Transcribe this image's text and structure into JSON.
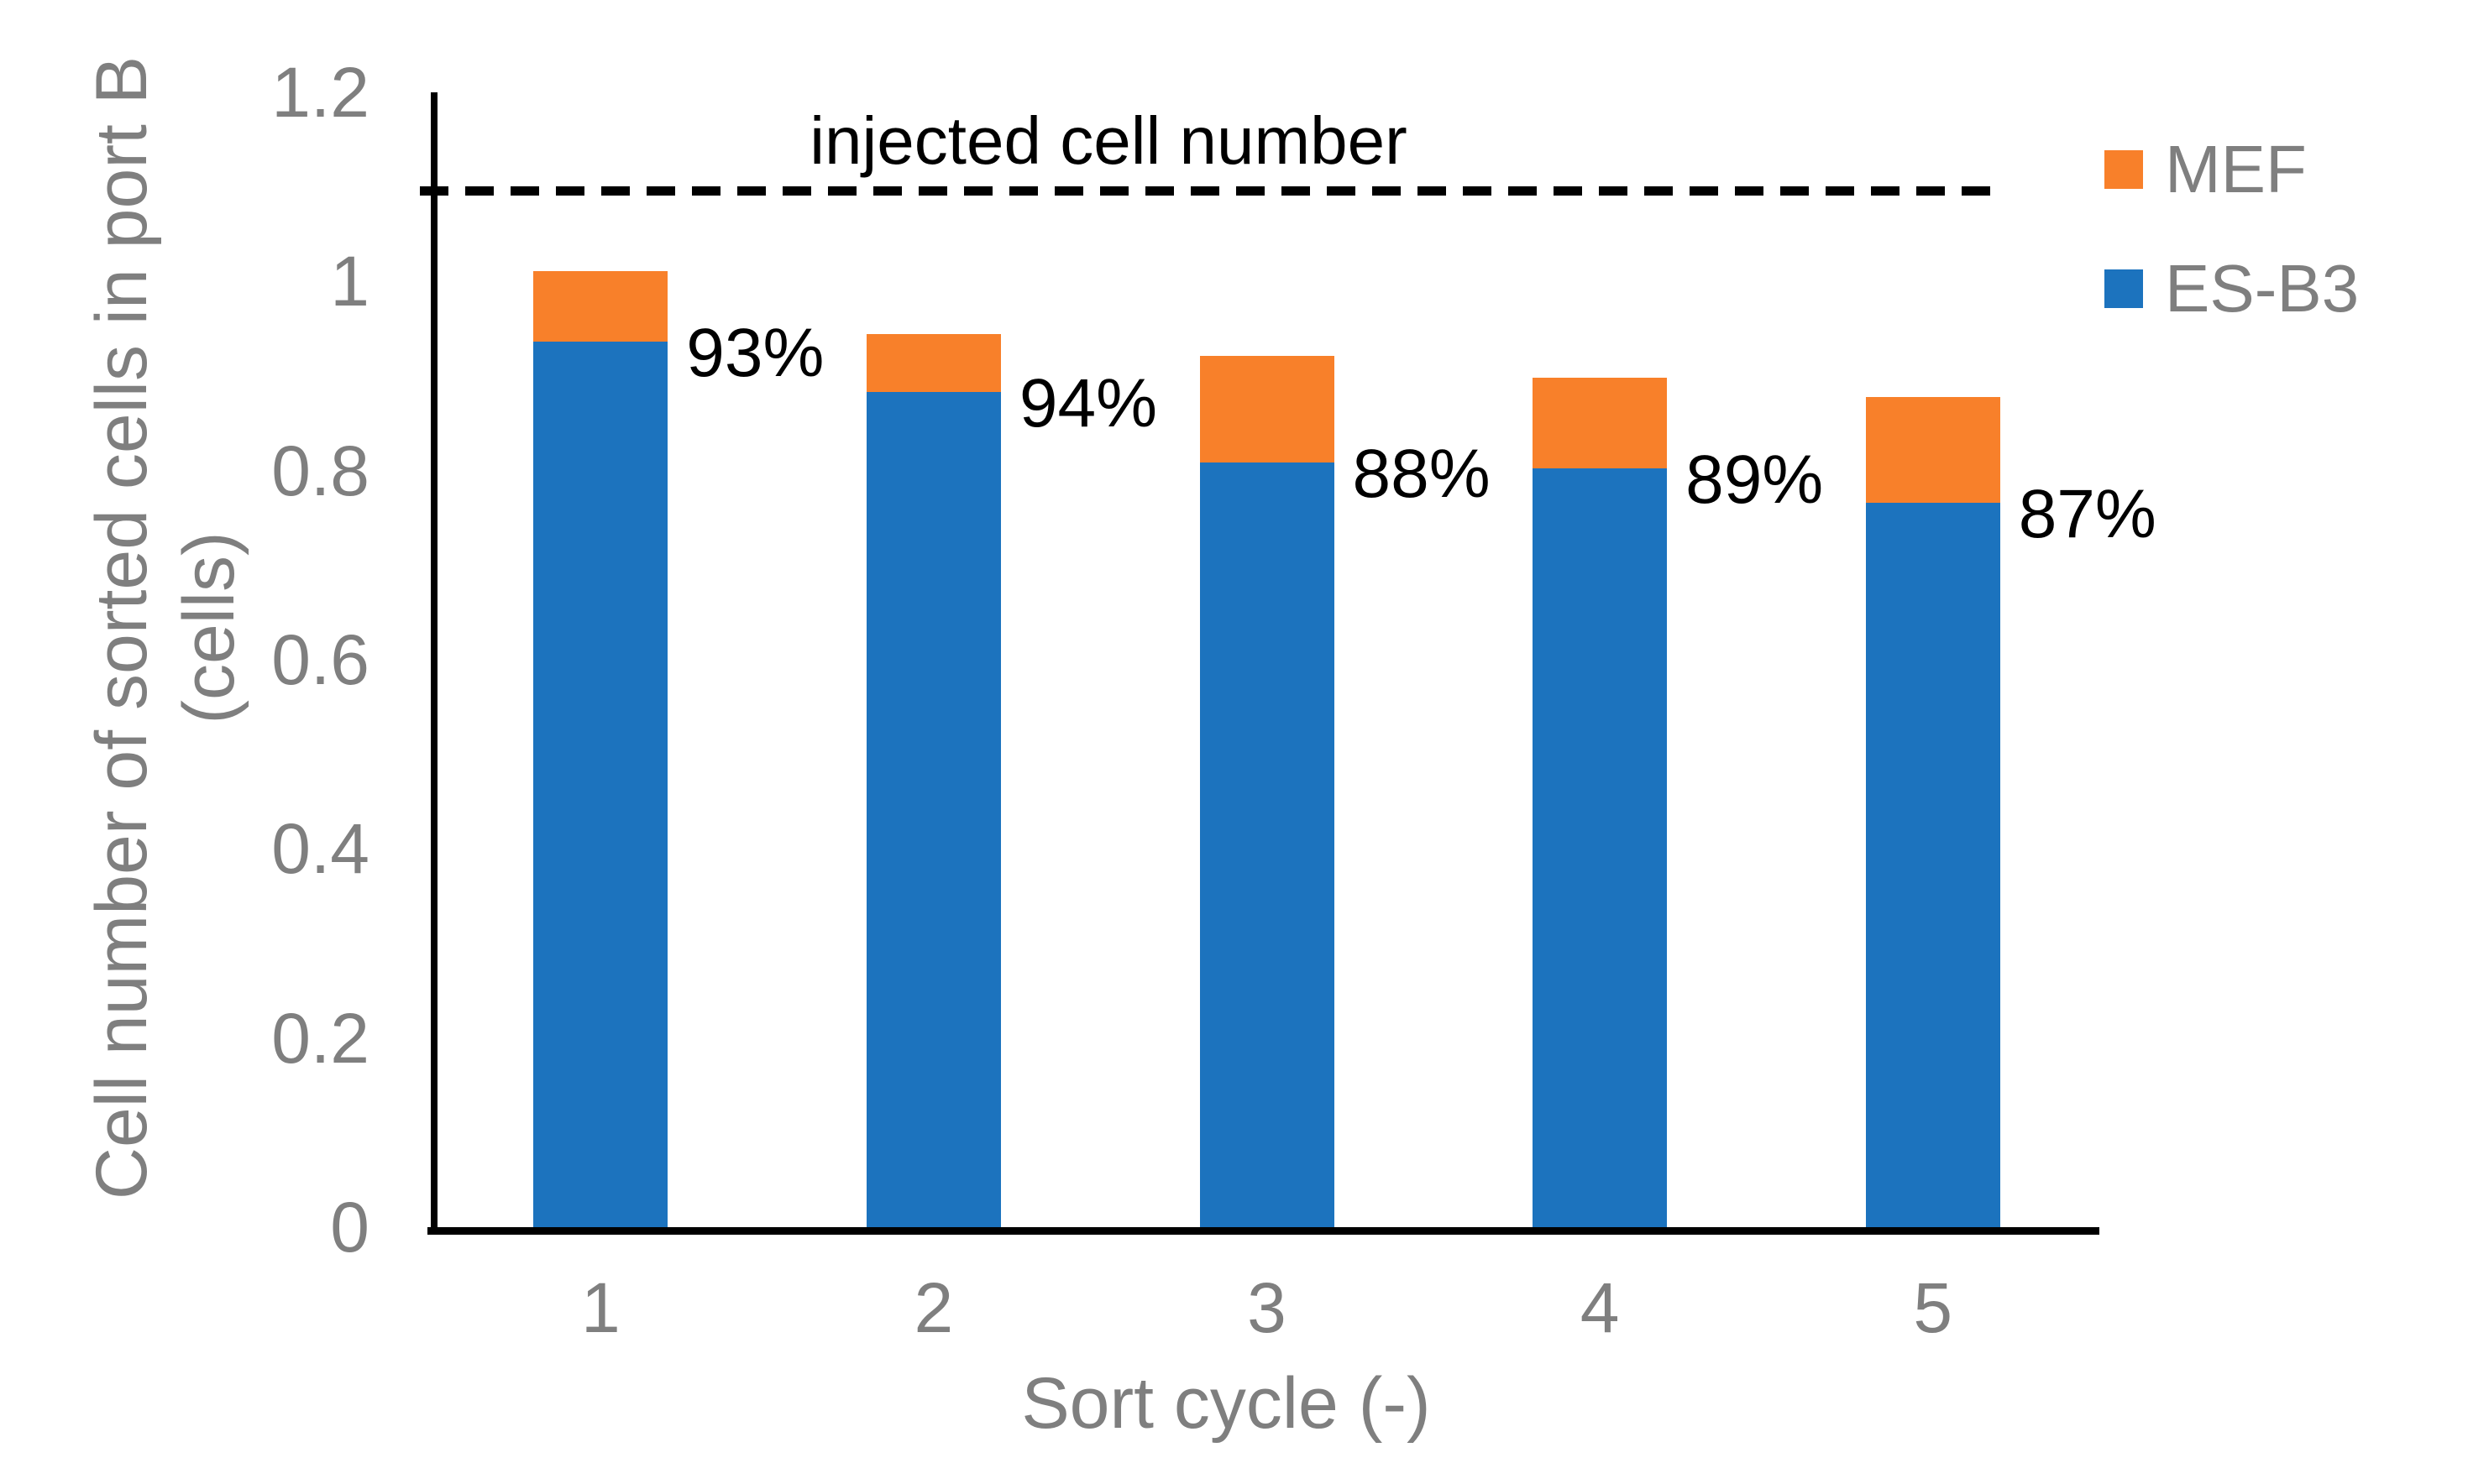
{
  "colors": {
    "es_b3_blue": "#1C73BE",
    "mef_orange": "#F8802A",
    "axis_black": "#000000",
    "label_gray": "#7F7F7F"
  },
  "chart_data": {
    "type": "bar",
    "stacked": true,
    "grid": false,
    "legend_position": "top-right",
    "categories": [
      "1",
      "2",
      "3",
      "4",
      "5"
    ],
    "series": [
      {
        "name": "ES-B3",
        "color": "#1C73BE",
        "values": [
          0.936,
          0.883,
          0.809,
          0.8025,
          0.766
        ]
      },
      {
        "name": "MEF",
        "color": "#F8802A",
        "values": [
          0.075,
          0.061,
          0.1125,
          0.096,
          0.112
        ]
      }
    ],
    "bar_totals": [
      1.011,
      0.944,
      0.9215,
      0.8985,
      0.878
    ],
    "bar_labels": [
      "93%",
      "94%",
      "88%",
      "89%",
      "87%"
    ],
    "reference_line": {
      "value": 1.096,
      "label": "injected cell number"
    },
    "xlabel": "Sort cycle (-)",
    "ylabel_line1": "Cell number of sorted cells in port B",
    "ylabel_line2": "(cells)",
    "ylim": [
      0,
      1.2
    ],
    "ytick_values": [
      0,
      0.2,
      0.4,
      0.6,
      0.8,
      1,
      1.2
    ],
    "ytick_labels": [
      "0",
      "0.2",
      "0.4",
      "0.6",
      "0.8",
      "1",
      "1.2"
    ],
    "legend": [
      {
        "label": "MEF",
        "color": "#F8802A"
      },
      {
        "label": "ES-B3",
        "color": "#1C73BE"
      }
    ]
  }
}
